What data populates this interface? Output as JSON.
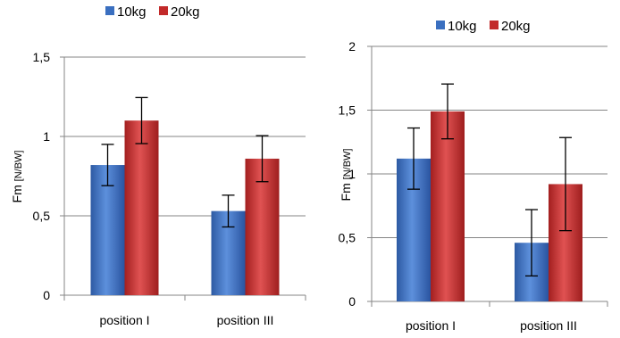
{
  "chart_data": [
    {
      "type": "bar",
      "categories": [
        "position I",
        "position III"
      ],
      "series": [
        {
          "name": "10kg",
          "values": [
            0.82,
            0.53
          ],
          "errors": [
            0.13,
            0.1
          ]
        },
        {
          "name": "20kg",
          "values": [
            1.1,
            0.86
          ],
          "errors": [
            0.145,
            0.145
          ]
        }
      ],
      "ylabel": {
        "main": "Fm",
        "unit": "[N/BW]"
      },
      "ylim": [
        0,
        1.5
      ],
      "yticks": [
        0,
        0.5,
        1,
        1.5
      ],
      "ytick_labels": [
        "0",
        "0,5",
        "1",
        "1,5"
      ],
      "grid": true,
      "legend": "top"
    },
    {
      "type": "bar",
      "categories": [
        "position I",
        "position III"
      ],
      "series": [
        {
          "name": "10kg",
          "values": [
            1.12,
            0.46
          ],
          "errors": [
            0.24,
            0.26
          ]
        },
        {
          "name": "20kg",
          "values": [
            1.49,
            0.92
          ],
          "errors": [
            0.215,
            0.365
          ]
        }
      ],
      "ylabel": {
        "main": "Fm",
        "unit": "[N/BW]"
      },
      "ylim": [
        0,
        2
      ],
      "yticks": [
        0,
        0.5,
        1,
        1.5,
        2
      ],
      "ytick_labels": [
        "0",
        "0,5",
        "1",
        "1,5",
        "2"
      ],
      "grid": true,
      "legend": "top"
    }
  ],
  "colors": {
    "series_10kg": "#3a6fc0",
    "series_20kg": "#c22a2a",
    "grid": "#858585",
    "axis": "#858585"
  }
}
